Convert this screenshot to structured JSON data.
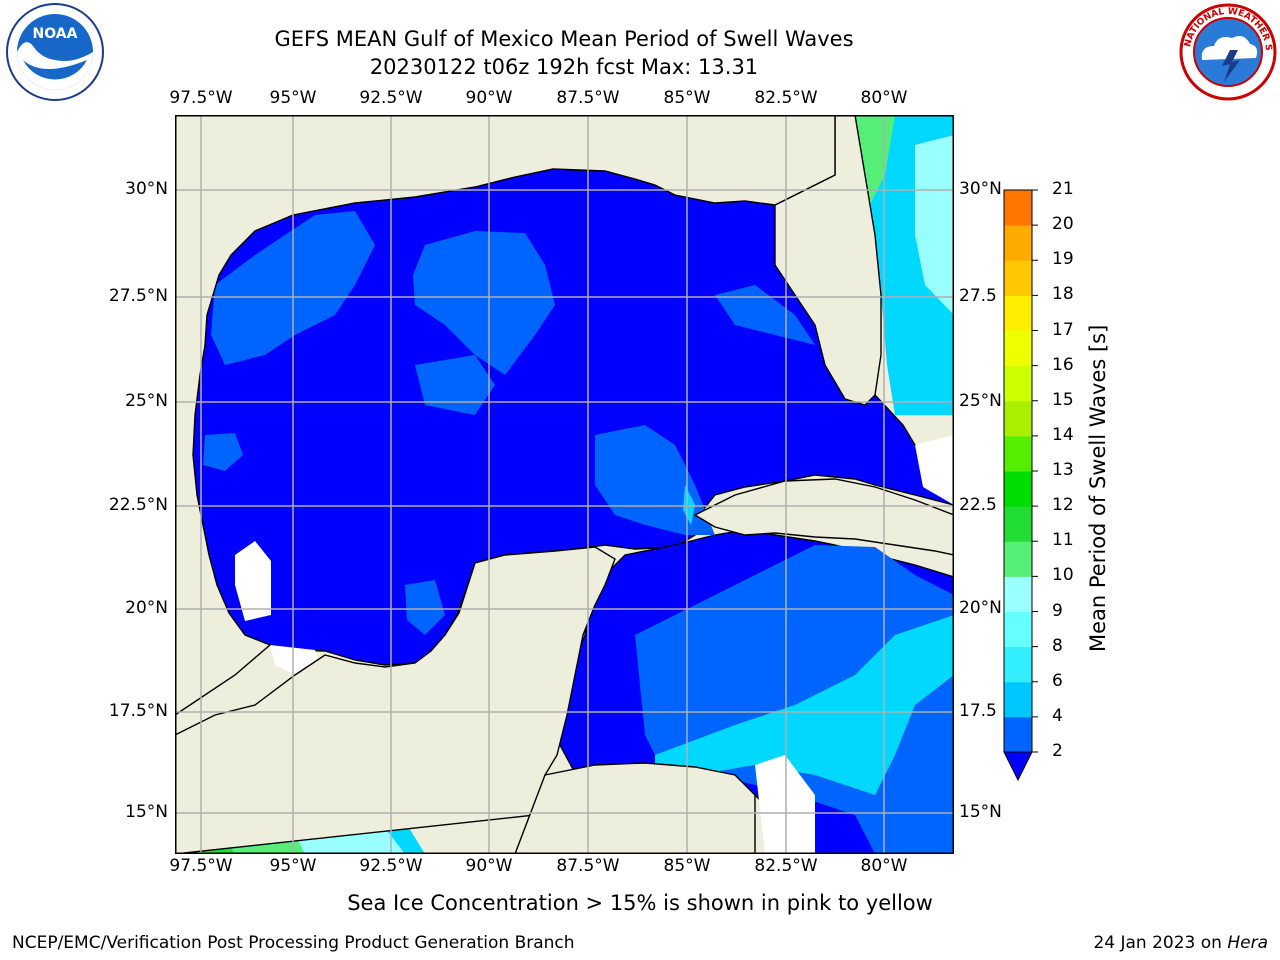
{
  "header": {
    "title_line1": "GEFS MEAN Gulf of Mexico Mean Period of Swell Waves",
    "title_line2": "20230122 t06z 192h fcst   Max: 13.31"
  },
  "map": {
    "lon_labels": [
      "97.5°W",
      "95°W",
      "92.5°W",
      "90°W",
      "87.5°W",
      "85°W",
      "82.5°W",
      "80°W"
    ],
    "lat_labels": [
      "30°N",
      "27.5°N",
      "25°N",
      "22.5°N",
      "20°N",
      "17.5°N",
      "15°N"
    ],
    "lat_labels_right": [
      "30°N",
      "27.5",
      "25°N",
      "22.5",
      "20°N",
      "17.5",
      "15°N"
    ],
    "colors": {
      "land": "#eeeedc",
      "water_low": "#0000ff",
      "grid": "#b0b0b0"
    }
  },
  "colorbar": {
    "title": "Mean Period of Swell Waves [s]",
    "ticks": [
      "2",
      "4",
      "6",
      "8",
      "9",
      "10",
      "11",
      "12",
      "13",
      "14",
      "15",
      "16",
      "17",
      "18",
      "19",
      "20",
      "21"
    ],
    "colors": [
      "#0064ff",
      "#00c8ff",
      "#33eeff",
      "#66ffff",
      "#99ffff",
      "#55ee77",
      "#22dd33",
      "#00dd00",
      "#55ee00",
      "#aaee00",
      "#ccff00",
      "#eeff00",
      "#ffee00",
      "#ffc800",
      "#ffaa00",
      "#ff7700",
      "#ff4400",
      "#ff0000"
    ]
  },
  "note": "Sea Ice Concentration > 15% is shown in pink to yellow",
  "footer": {
    "left": "NCEP/EMC/Verification Post Processing Product Generation Branch",
    "right_date": "24 Jan 2023 on",
    "right_host": "Hera"
  },
  "logos": {
    "noaa_text": "NOAA",
    "noaa_ring": "NATIONAL OCEANIC AND ATMOSPHERIC ADMINISTRATION · U.S. DEPARTMENT OF COMMERCE",
    "nws_ring": "NATIONAL WEATHER SERVICE"
  }
}
